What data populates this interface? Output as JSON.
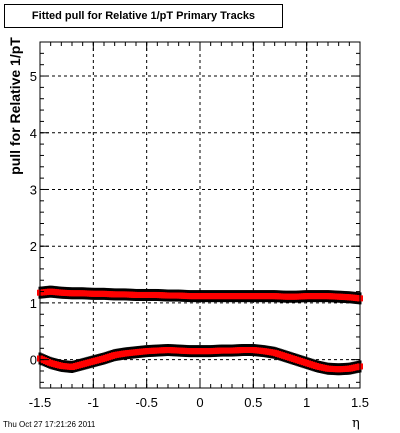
{
  "title": "Fitted pull for Relative 1/pT  Primary Tracks",
  "ylabel": "pull for Relative 1/pT",
  "xlabel": "η",
  "timestamp": "Thu Oct 27 17:21:26 2011",
  "colors": {
    "axis": "#000000",
    "grid": "#000000",
    "series_mean": "#ff0000",
    "series_err": "#000000"
  },
  "chart_data": {
    "type": "scatter",
    "xlim": [
      -1.5,
      1.5
    ],
    "ylim": [
      -0.5,
      5.6
    ],
    "x_ticks": [
      -1.5,
      -1,
      -0.5,
      0,
      0.5,
      1,
      1.5
    ],
    "x_tick_labels": [
      "-1.5",
      "-1",
      "-0.5",
      "0",
      "0.5",
      "1",
      "1.5"
    ],
    "y_ticks": [
      0,
      1,
      2,
      3,
      4,
      5
    ],
    "y_tick_labels": [
      "0",
      "1",
      "2",
      "3",
      "4",
      "5"
    ],
    "grid": true,
    "series": [
      {
        "x": [
          -1.5,
          -1.4,
          -1.3,
          -1.2,
          -1.1,
          -1.0,
          -0.9,
          -0.8,
          -0.7,
          -0.6,
          -0.5,
          -0.4,
          -0.3,
          -0.2,
          -0.1,
          0.0,
          0.1,
          0.2,
          0.3,
          0.4,
          0.5,
          0.6,
          0.7,
          0.8,
          0.9,
          1.0,
          1.1,
          1.2,
          1.3,
          1.4,
          1.5
        ],
        "y": [
          1.18,
          1.2,
          1.18,
          1.17,
          1.17,
          1.16,
          1.16,
          1.15,
          1.15,
          1.14,
          1.14,
          1.14,
          1.13,
          1.13,
          1.12,
          1.12,
          1.12,
          1.12,
          1.12,
          1.12,
          1.12,
          1.12,
          1.12,
          1.11,
          1.11,
          1.12,
          1.12,
          1.12,
          1.11,
          1.1,
          1.08
        ]
      },
      {
        "x": [
          -1.5,
          -1.4,
          -1.3,
          -1.2,
          -1.1,
          -1.0,
          -0.9,
          -0.8,
          -0.7,
          -0.6,
          -0.5,
          -0.4,
          -0.3,
          -0.2,
          -0.1,
          0.0,
          0.1,
          0.2,
          0.3,
          0.4,
          0.5,
          0.6,
          0.7,
          0.8,
          0.9,
          1.0,
          1.1,
          1.2,
          1.3,
          1.4,
          1.5
        ],
        "y": [
          0.02,
          -0.06,
          -0.11,
          -0.13,
          -0.08,
          -0.03,
          0.02,
          0.08,
          0.11,
          0.13,
          0.15,
          0.16,
          0.17,
          0.16,
          0.15,
          0.15,
          0.15,
          0.16,
          0.16,
          0.17,
          0.17,
          0.15,
          0.12,
          0.06,
          0.0,
          -0.06,
          -0.12,
          -0.16,
          -0.17,
          -0.16,
          -0.12
        ]
      }
    ]
  }
}
